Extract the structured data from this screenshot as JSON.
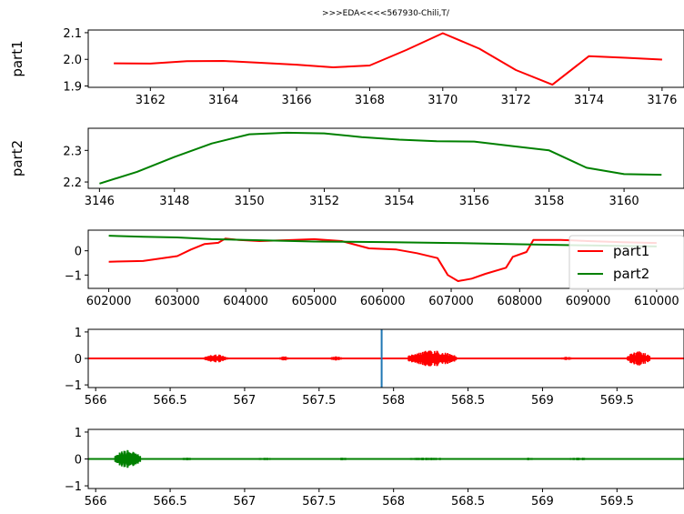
{
  "figure_title": ">>>EDA<<<<567930-Chili,T/",
  "colors": {
    "part1": "#ff0000",
    "part2": "#008000",
    "marker": "#1f77b4",
    "axis": "#000000"
  },
  "chart_data": [
    {
      "type": "line",
      "ylabel": "part1",
      "xlim": [
        3160.3,
        3176.6
      ],
      "ylim": [
        1.895,
        2.11
      ],
      "xticks": [
        3162,
        3164,
        3166,
        3168,
        3170,
        3172,
        3174,
        3176
      ],
      "yticks": [
        1.9,
        2.0,
        2.1
      ],
      "ytick_labels": [
        "1.9",
        "2.0",
        "2.1"
      ],
      "series": [
        {
          "name": "part1",
          "color": "#ff0000",
          "x": [
            3161,
            3162,
            3163,
            3164,
            3165,
            3166,
            3167,
            3168,
            3169,
            3170,
            3171,
            3172,
            3173,
            3174,
            3175,
            3176
          ],
          "y": [
            1.985,
            1.984,
            1.993,
            1.994,
            1.987,
            1.98,
            1.97,
            1.977,
            2.035,
            2.098,
            2.04,
            1.96,
            1.905,
            2.012,
            2.006,
            1.999
          ]
        }
      ]
    },
    {
      "type": "line",
      "ylabel": "part2",
      "xlim": [
        3145.7,
        3161.6
      ],
      "ylim": [
        2.18,
        2.37
      ],
      "xticks": [
        3146,
        3148,
        3150,
        3152,
        3154,
        3156,
        3158,
        3160
      ],
      "yticks": [
        2.2,
        2.3
      ],
      "ytick_labels": [
        "2.2",
        "2.3"
      ],
      "series": [
        {
          "name": "part2",
          "color": "#008000",
          "x": [
            3146,
            3147,
            3148,
            3149,
            3150,
            3151,
            3152,
            3153,
            3154,
            3155,
            3156,
            3157,
            3158,
            3159,
            3160,
            3161
          ],
          "y": [
            2.195,
            2.232,
            2.279,
            2.322,
            2.351,
            2.356,
            2.354,
            2.342,
            2.334,
            2.329,
            2.328,
            2.314,
            2.3,
            2.245,
            2.225,
            2.223
          ]
        }
      ]
    },
    {
      "type": "line",
      "ylabel": "",
      "xlim": [
        601700,
        610400
      ],
      "ylim": [
        -1.55,
        0.85
      ],
      "xticks": [
        602000,
        603000,
        604000,
        605000,
        606000,
        607000,
        608000,
        609000,
        610000
      ],
      "yticks": [
        -1,
        0
      ],
      "ytick_labels": [
        "−1",
        "0"
      ],
      "legend": {
        "position": "right",
        "entries": [
          "part1",
          "part2"
        ]
      },
      "series": [
        {
          "name": "part1",
          "color": "#ff0000",
          "x": [
            602000,
            602500,
            603000,
            603200,
            603400,
            603600,
            603700,
            603900,
            604200,
            604700,
            605000,
            605400,
            605800,
            606200,
            606500,
            606800,
            606950,
            607100,
            607300,
            607500,
            607800,
            607900,
            608100,
            608200,
            608600,
            609000,
            609500,
            610000
          ],
          "y": [
            -0.45,
            -0.42,
            -0.22,
            0.05,
            0.28,
            0.33,
            0.5,
            0.45,
            0.4,
            0.45,
            0.48,
            0.4,
            0.1,
            0.05,
            -0.1,
            -0.3,
            -1.0,
            -1.25,
            -1.15,
            -0.95,
            -0.7,
            -0.25,
            -0.05,
            0.45,
            0.45,
            0.4,
            0.35,
            0.32
          ]
        },
        {
          "name": "part2",
          "color": "#008000",
          "x": [
            602000,
            602500,
            603000,
            603500,
            604000,
            605000,
            606000,
            607000,
            607500,
            608000,
            609000,
            610000
          ],
          "y": [
            0.62,
            0.58,
            0.55,
            0.48,
            0.45,
            0.38,
            0.36,
            0.32,
            0.3,
            0.27,
            0.22,
            0.18
          ]
        }
      ]
    },
    {
      "type": "line",
      "ylabel": "",
      "xlim": [
        565.95,
        569.95
      ],
      "ylim": [
        -1.1,
        1.1
      ],
      "xticks": [
        566.0,
        566.5,
        567.0,
        567.5,
        568.0,
        568.5,
        569.0,
        569.5
      ],
      "yticks": [
        -1,
        0,
        1
      ],
      "ytick_labels": [
        "−1",
        "0",
        "1"
      ],
      "vline_x": 567.92,
      "series": [
        {
          "name": "part1",
          "color": "#ff0000",
          "bursts": [
            {
              "x": [
                566.73,
                566.89
              ],
              "amp": 0.15
            },
            {
              "x": [
                567.23,
                567.3
              ],
              "amp": 0.08
            },
            {
              "x": [
                567.57,
                567.66
              ],
              "amp": 0.08
            },
            {
              "x": [
                568.1,
                568.42
              ],
              "amp": 0.3
            },
            {
              "x": [
                569.1,
                569.22
              ],
              "amp": 0.06
            },
            {
              "x": [
                569.57,
                569.72
              ],
              "amp": 0.28
            }
          ]
        }
      ]
    },
    {
      "type": "line",
      "ylabel": "",
      "xlim": [
        565.95,
        569.95
      ],
      "ylim": [
        -1.1,
        1.1
      ],
      "xticks": [
        566.0,
        566.5,
        567.0,
        567.5,
        568.0,
        568.5,
        569.0,
        569.5
      ],
      "yticks": [
        -1,
        0,
        1
      ],
      "ytick_labels": [
        "−1",
        "0",
        "1"
      ],
      "series": [
        {
          "name": "part2",
          "color": "#008000",
          "bursts": [
            {
              "x": [
                566.13,
                566.3
              ],
              "amp": 0.35
            },
            {
              "x": [
                566.55,
                566.68
              ],
              "amp": 0.05
            },
            {
              "x": [
                567.07,
                567.2
              ],
              "amp": 0.05
            },
            {
              "x": [
                567.6,
                567.72
              ],
              "amp": 0.05
            },
            {
              "x": [
                568.02,
                568.42
              ],
              "amp": 0.05
            },
            {
              "x": [
                568.85,
                568.96
              ],
              "amp": 0.05
            },
            {
              "x": [
                569.15,
                569.35
              ],
              "amp": 0.05
            }
          ]
        }
      ]
    }
  ]
}
